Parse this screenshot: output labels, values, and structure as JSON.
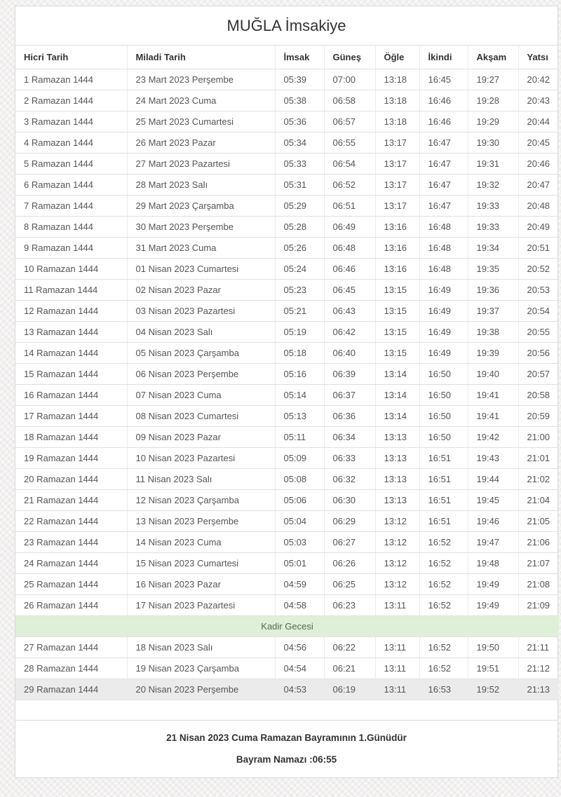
{
  "title": "MUĞLA İmsakiye",
  "table": {
    "headers": [
      "Hicri Tarih",
      "Miladi Tarih",
      "İmsak",
      "Güneş",
      "Öğle",
      "İkindi",
      "Akşam",
      "Yatsı"
    ],
    "rows": [
      [
        "1 Ramazan 1444",
        "23 Mart 2023 Perşembe",
        "05:39",
        "07:00",
        "13:18",
        "16:45",
        "19:27",
        "20:42"
      ],
      [
        "2 Ramazan 1444",
        "24 Mart 2023 Cuma",
        "05:38",
        "06:58",
        "13:18",
        "16:46",
        "19:28",
        "20:43"
      ],
      [
        "3 Ramazan 1444",
        "25 Mart 2023 Cumartesi",
        "05:36",
        "06:57",
        "13:18",
        "16:46",
        "19:29",
        "20:44"
      ],
      [
        "4 Ramazan 1444",
        "26 Mart 2023 Pazar",
        "05:34",
        "06:55",
        "13:17",
        "16:47",
        "19:30",
        "20:45"
      ],
      [
        "5 Ramazan 1444",
        "27 Mart 2023 Pazartesi",
        "05:33",
        "06:54",
        "13:17",
        "16:47",
        "19:31",
        "20:46"
      ],
      [
        "6 Ramazan 1444",
        "28 Mart 2023 Salı",
        "05:31",
        "06:52",
        "13:17",
        "16:47",
        "19:32",
        "20:47"
      ],
      [
        "7 Ramazan 1444",
        "29 Mart 2023 Çarşamba",
        "05:29",
        "06:51",
        "13:17",
        "16:47",
        "19:33",
        "20:48"
      ],
      [
        "8 Ramazan 1444",
        "30 Mart 2023 Perşembe",
        "05:28",
        "06:49",
        "13:16",
        "16:48",
        "19:33",
        "20:49"
      ],
      [
        "9 Ramazan 1444",
        "31 Mart 2023 Cuma",
        "05:26",
        "06:48",
        "13:16",
        "16:48",
        "19:34",
        "20:51"
      ],
      [
        "10 Ramazan 1444",
        "01 Nisan 2023 Cumartesi",
        "05:24",
        "06:46",
        "13:16",
        "16:48",
        "19:35",
        "20:52"
      ],
      [
        "11 Ramazan 1444",
        "02 Nisan 2023 Pazar",
        "05:23",
        "06:45",
        "13:15",
        "16:49",
        "19:36",
        "20:53"
      ],
      [
        "12 Ramazan 1444",
        "03 Nisan 2023 Pazartesi",
        "05:21",
        "06:43",
        "13:15",
        "16:49",
        "19:37",
        "20:54"
      ],
      [
        "13 Ramazan 1444",
        "04 Nisan 2023 Salı",
        "05:19",
        "06:42",
        "13:15",
        "16:49",
        "19:38",
        "20:55"
      ],
      [
        "14 Ramazan 1444",
        "05 Nisan 2023 Çarşamba",
        "05:18",
        "06:40",
        "13:15",
        "16:49",
        "19:39",
        "20:56"
      ],
      [
        "15 Ramazan 1444",
        "06 Nisan 2023 Perşembe",
        "05:16",
        "06:39",
        "13:14",
        "16:50",
        "19:40",
        "20:57"
      ],
      [
        "16 Ramazan 1444",
        "07 Nisan 2023 Cuma",
        "05:14",
        "06:37",
        "13:14",
        "16:50",
        "19:41",
        "20:58"
      ],
      [
        "17 Ramazan 1444",
        "08 Nisan 2023 Cumartesi",
        "05:13",
        "06:36",
        "13:14",
        "16:50",
        "19:41",
        "20:59"
      ],
      [
        "18 Ramazan 1444",
        "09 Nisan 2023 Pazar",
        "05:11",
        "06:34",
        "13:13",
        "16:50",
        "19:42",
        "21:00"
      ],
      [
        "19 Ramazan 1444",
        "10 Nisan 2023 Pazartesi",
        "05:09",
        "06:33",
        "13:13",
        "16:51",
        "19:43",
        "21:01"
      ],
      [
        "20 Ramazan 1444",
        "11 Nisan 2023 Salı",
        "05:08",
        "06:32",
        "13:13",
        "16:51",
        "19:44",
        "21:02"
      ],
      [
        "21 Ramazan 1444",
        "12 Nisan 2023 Çarşamba",
        "05:06",
        "06:30",
        "13:13",
        "16:51",
        "19:45",
        "21:04"
      ],
      [
        "22 Ramazan 1444",
        "13 Nisan 2023 Perşembe",
        "05:04",
        "06:29",
        "13:12",
        "16:51",
        "19:46",
        "21:05"
      ],
      [
        "23 Ramazan 1444",
        "14 Nisan 2023 Cuma",
        "05:03",
        "06:27",
        "13:12",
        "16:52",
        "19:47",
        "21:06"
      ],
      [
        "24 Ramazan 1444",
        "15 Nisan 2023 Cumartesi",
        "05:01",
        "06:26",
        "13:12",
        "16:52",
        "19:48",
        "21:07"
      ],
      [
        "25 Ramazan 1444",
        "16 Nisan 2023 Pazar",
        "04:59",
        "06:25",
        "13:12",
        "16:52",
        "19:49",
        "21:08"
      ],
      [
        "26 Ramazan 1444",
        "17 Nisan 2023 Pazartesi",
        "04:58",
        "06:23",
        "13:11",
        "16:52",
        "19:49",
        "21:09"
      ],
      [
        "27 Ramazan 1444",
        "18 Nisan 2023 Salı",
        "04:56",
        "06:22",
        "13:11",
        "16:52",
        "19:50",
        "21:11"
      ],
      [
        "28 Ramazan 1444",
        "19 Nisan 2023 Çarşamba",
        "04:54",
        "06:21",
        "13:11",
        "16:52",
        "19:51",
        "21:12"
      ],
      [
        "29 Ramazan 1444",
        "20 Nisan 2023 Perşembe",
        "04:53",
        "06:19",
        "13:11",
        "16:53",
        "19:52",
        "21:13"
      ]
    ],
    "kadir_row": {
      "label": "Kadir Gecesi",
      "after_row_index": 25
    },
    "highlighted_row_index": 28
  },
  "footer": {
    "line1": "21 Nisan 2023 Cuma Ramazan Bayramının 1.Günüdür",
    "line2": "Bayram Namazı :06:55"
  },
  "colors": {
    "kadir_row_bg": "#dff0d8",
    "highlighted_row_bg": "#ebebeb",
    "table_border": "#e0e0e0",
    "header_text": "#333333",
    "cell_text": "#555555"
  }
}
